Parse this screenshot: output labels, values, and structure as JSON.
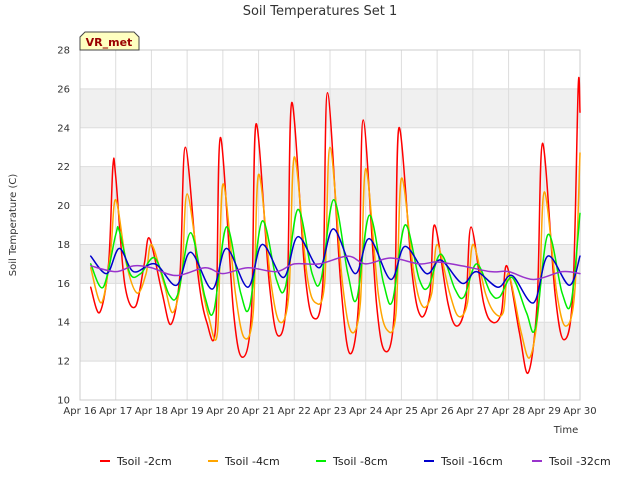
{
  "chart_data": {
    "type": "line",
    "title": "Soil Temperatures Set 1",
    "xlabel": "Time",
    "ylabel": "Soil Temperature (C)",
    "station_badge": "VR_met",
    "ylim": [
      10,
      28
    ],
    "y_ticks": [
      10,
      12,
      14,
      16,
      18,
      20,
      22,
      24,
      26,
      28
    ],
    "xlim": [
      "Apr 16",
      "Apr 30"
    ],
    "x_ticks": [
      "Apr 16",
      "Apr 17",
      "Apr 18",
      "Apr 19",
      "Apr 20",
      "Apr 21",
      "Apr 22",
      "Apr 23",
      "Apr 24",
      "Apr 25",
      "Apr 26",
      "Apr 27",
      "Apr 28",
      "Apr 29",
      "Apr 30"
    ],
    "grid": true,
    "shaded_bands": [
      [
        12,
        14
      ],
      [
        16,
        18
      ],
      [
        20,
        22
      ],
      [
        24,
        26
      ]
    ],
    "legend_position": "bottom",
    "x_unit_note": "x values are days elapsed since Apr 16 00:00",
    "series": [
      {
        "name": "Tsoil -2cm",
        "color": "#ff0000",
        "x": [
          0.3,
          0.55,
          0.8,
          0.92,
          1.0,
          1.25,
          1.55,
          1.8,
          1.95,
          2.3,
          2.55,
          2.8,
          2.95,
          3.3,
          3.55,
          3.8,
          3.93,
          4.3,
          4.55,
          4.8,
          4.93,
          5.3,
          5.55,
          5.8,
          5.93,
          6.3,
          6.55,
          6.8,
          6.93,
          7.3,
          7.55,
          7.8,
          7.93,
          8.3,
          8.55,
          8.8,
          8.93,
          9.3,
          9.55,
          9.8,
          9.93,
          10.3,
          10.55,
          10.8,
          10.95,
          11.3,
          11.55,
          11.8,
          11.95,
          12.3,
          12.55,
          12.8,
          12.95,
          13.3,
          13.55,
          13.8,
          13.95,
          14.0
        ],
        "y": [
          15.8,
          14.5,
          17.0,
          22.0,
          21.5,
          16.0,
          14.8,
          17.0,
          18.3,
          15.5,
          13.9,
          16.5,
          23.0,
          16.5,
          14.0,
          13.8,
          23.5,
          14.5,
          12.2,
          14.5,
          24.2,
          16.0,
          13.3,
          15.5,
          25.3,
          16.5,
          14.2,
          16.0,
          25.8,
          16.0,
          12.4,
          15.0,
          24.4,
          15.0,
          12.5,
          14.5,
          24.0,
          16.5,
          14.3,
          15.5,
          19.0,
          15.0,
          13.8,
          15.0,
          18.9,
          15.0,
          14.0,
          14.5,
          16.9,
          13.5,
          11.4,
          15.0,
          23.2,
          15.5,
          13.1,
          15.5,
          26.1,
          24.8
        ]
      },
      {
        "name": "Tsoil -4cm",
        "color": "#ffa500",
        "x": [
          0.3,
          0.6,
          0.85,
          1.0,
          1.3,
          1.6,
          1.85,
          2.0,
          2.35,
          2.6,
          2.85,
          3.0,
          3.35,
          3.6,
          3.85,
          4.0,
          4.35,
          4.6,
          4.85,
          5.0,
          5.35,
          5.6,
          5.85,
          6.0,
          6.35,
          6.6,
          6.85,
          7.0,
          7.35,
          7.6,
          7.85,
          8.0,
          8.35,
          8.6,
          8.85,
          9.0,
          9.35,
          9.6,
          9.85,
          10.0,
          10.35,
          10.6,
          10.85,
          11.0,
          11.35,
          11.6,
          11.85,
          12.0,
          12.35,
          12.6,
          12.85,
          13.0,
          13.35,
          13.6,
          13.85,
          14.0
        ],
        "y": [
          16.8,
          15.0,
          17.5,
          20.3,
          17.0,
          15.5,
          16.5,
          18.0,
          16.0,
          14.5,
          16.5,
          20.6,
          16.5,
          14.3,
          13.5,
          21.1,
          15.5,
          13.2,
          14.5,
          21.6,
          16.0,
          14.0,
          15.5,
          22.5,
          16.5,
          15.0,
          16.0,
          23.0,
          16.0,
          13.5,
          15.0,
          21.9,
          15.5,
          13.6,
          14.5,
          21.4,
          16.5,
          14.8,
          15.5,
          18.0,
          15.5,
          14.3,
          15.0,
          18.0,
          15.5,
          14.5,
          14.5,
          16.5,
          13.5,
          12.2,
          15.0,
          20.7,
          15.5,
          13.8,
          15.5,
          22.7
        ]
      },
      {
        "name": "Tsoil -8cm",
        "color": "#00ee00",
        "x": [
          0.3,
          0.65,
          1.0,
          1.1,
          1.4,
          1.7,
          2.1,
          2.5,
          2.75,
          3.1,
          3.5,
          3.75,
          4.1,
          4.5,
          4.75,
          5.1,
          5.5,
          5.75,
          6.1,
          6.5,
          6.75,
          7.1,
          7.5,
          7.75,
          8.1,
          8.5,
          8.75,
          9.1,
          9.5,
          9.75,
          10.1,
          10.5,
          10.75,
          11.1,
          11.5,
          11.75,
          12.1,
          12.5,
          12.75,
          13.1,
          13.5,
          13.75,
          14.0
        ],
        "y": [
          17.0,
          15.8,
          18.5,
          18.7,
          16.5,
          16.5,
          17.3,
          15.4,
          15.5,
          18.6,
          15.3,
          14.6,
          18.9,
          15.5,
          14.8,
          19.2,
          16.2,
          15.8,
          19.8,
          16.5,
          16.2,
          20.3,
          16.5,
          15.2,
          19.5,
          16.0,
          15.1,
          19.0,
          16.2,
          15.8,
          17.5,
          15.7,
          15.3,
          17.0,
          15.5,
          15.3,
          16.3,
          14.5,
          13.7,
          18.5,
          15.5,
          15.0,
          19.6
        ]
      },
      {
        "name": "Tsoil -16cm",
        "color": "#0000cc",
        "x": [
          0.3,
          0.75,
          1.1,
          1.5,
          2.1,
          2.7,
          3.1,
          3.7,
          4.1,
          4.7,
          5.1,
          5.7,
          6.1,
          6.7,
          7.1,
          7.7,
          8.1,
          8.7,
          9.1,
          9.7,
          10.1,
          10.7,
          11.1,
          11.7,
          12.1,
          12.7,
          13.1,
          13.7,
          14.0
        ],
        "y": [
          17.4,
          16.5,
          17.8,
          16.6,
          17.0,
          15.9,
          17.6,
          15.7,
          17.8,
          15.8,
          18.0,
          16.3,
          18.4,
          16.8,
          18.8,
          16.5,
          18.3,
          16.2,
          17.9,
          16.5,
          17.2,
          16.0,
          16.6,
          15.8,
          16.4,
          15.0,
          17.4,
          15.9,
          17.4
        ]
      },
      {
        "name": "Tsoil -32cm",
        "color": "#9933cc",
        "x": [
          0.3,
          1.0,
          1.5,
          2.0,
          2.7,
          3.5,
          4.0,
          4.7,
          5.5,
          6.0,
          6.7,
          7.5,
          8.0,
          8.7,
          9.5,
          10.0,
          10.7,
          11.5,
          12.0,
          12.7,
          13.5,
          14.0
        ],
        "y": [
          16.9,
          16.6,
          16.9,
          16.8,
          16.4,
          16.8,
          16.5,
          16.8,
          16.6,
          17.0,
          17.0,
          17.4,
          17.0,
          17.3,
          17.0,
          17.1,
          16.9,
          16.6,
          16.6,
          16.2,
          16.6,
          16.5
        ]
      }
    ]
  }
}
